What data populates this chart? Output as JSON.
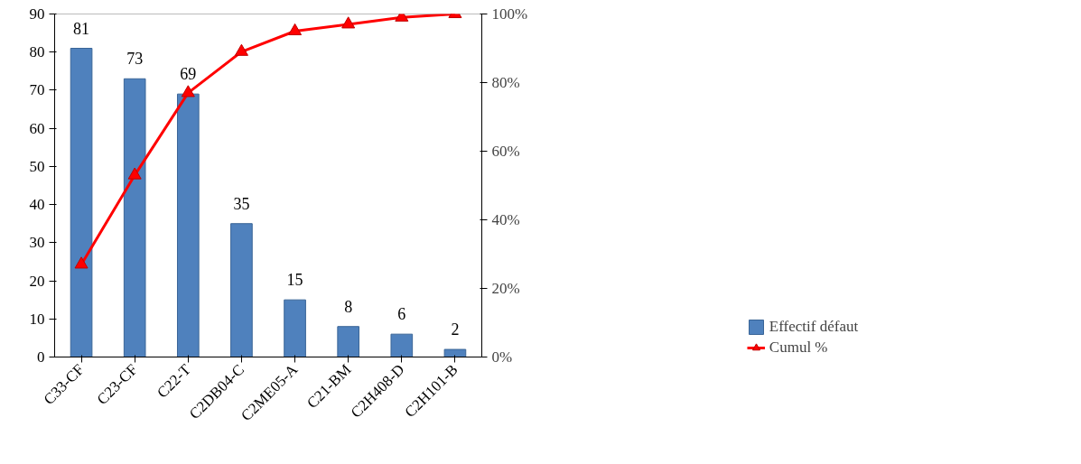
{
  "chart_data": {
    "type": "bar",
    "categories": [
      "C33-CF",
      "C23-CF",
      "C22-T",
      "C2DB04-C",
      "C2ME05-A",
      "C21-BM",
      "C2H408-D",
      "C2H101-B"
    ],
    "series": [
      {
        "name": "Effectif défaut",
        "color": "#4f81bd",
        "values": [
          81,
          73,
          69,
          35,
          15,
          8,
          6,
          2
        ],
        "data_labels": true
      },
      {
        "name": "Cumul %",
        "type": "line",
        "axis": "y2",
        "color": "#ff0000",
        "marker": "triangle",
        "values": [
          27,
          53,
          77,
          89,
          95,
          97,
          99,
          100
        ]
      }
    ],
    "ylim": [
      0,
      90
    ],
    "yticks": [
      0,
      10,
      20,
      30,
      40,
      50,
      60,
      70,
      80,
      90
    ],
    "y2lim": [
      0,
      100
    ],
    "y2ticks": [
      {
        "value": 0,
        "label": "0%"
      },
      {
        "value": 20,
        "label": "20%"
      },
      {
        "value": 40,
        "label": "40%"
      },
      {
        "value": 60,
        "label": "60%"
      },
      {
        "value": 80,
        "label": "80%"
      },
      {
        "value": 100,
        "label": "100%"
      }
    ],
    "grid": false,
    "legend": "right"
  }
}
